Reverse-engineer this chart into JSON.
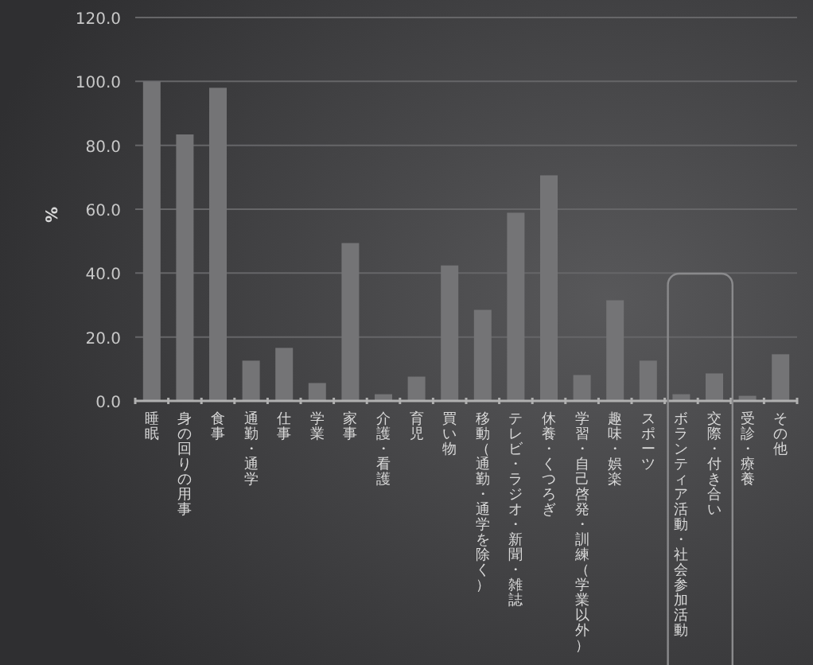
{
  "chart_data": {
    "type": "bar",
    "ylabel": "%",
    "categories": [
      "睡眠",
      "身の回りの用事",
      "食事",
      "通勤・通学",
      "仕事",
      "学業",
      "家事",
      "介護・看護",
      "育児",
      "買い物",
      "移動（通勤・通学を除く）",
      "テレビ・ラジオ・新聞・雑誌",
      "休養・くつろぎ",
      "学習・自己啓発・訓練（学業以外）",
      "趣味・娯楽",
      "スポーツ",
      "ボランティア活動・社会参加活動",
      "交際・付き合い",
      "受診・療養",
      "その他"
    ],
    "values": [
      100.0,
      83.4,
      98.0,
      12.6,
      16.6,
      5.6,
      49.4,
      2.1,
      7.6,
      42.4,
      28.5,
      58.9,
      70.6,
      8.1,
      31.5,
      12.6,
      2.1,
      8.6,
      1.6,
      14.6
    ],
    "color": "#747476",
    "ylim": [
      0,
      120
    ],
    "yticks": [
      {
        "value": 0,
        "label": "0.0"
      },
      {
        "value": 20,
        "label": "20.0"
      },
      {
        "value": 40,
        "label": "40.0"
      },
      {
        "value": 60,
        "label": "60.0"
      },
      {
        "value": 80,
        "label": "80.0"
      },
      {
        "value": 100,
        "label": "100.0"
      },
      {
        "value": 120,
        "label": "120.0"
      }
    ],
    "grid": "y"
  }
}
